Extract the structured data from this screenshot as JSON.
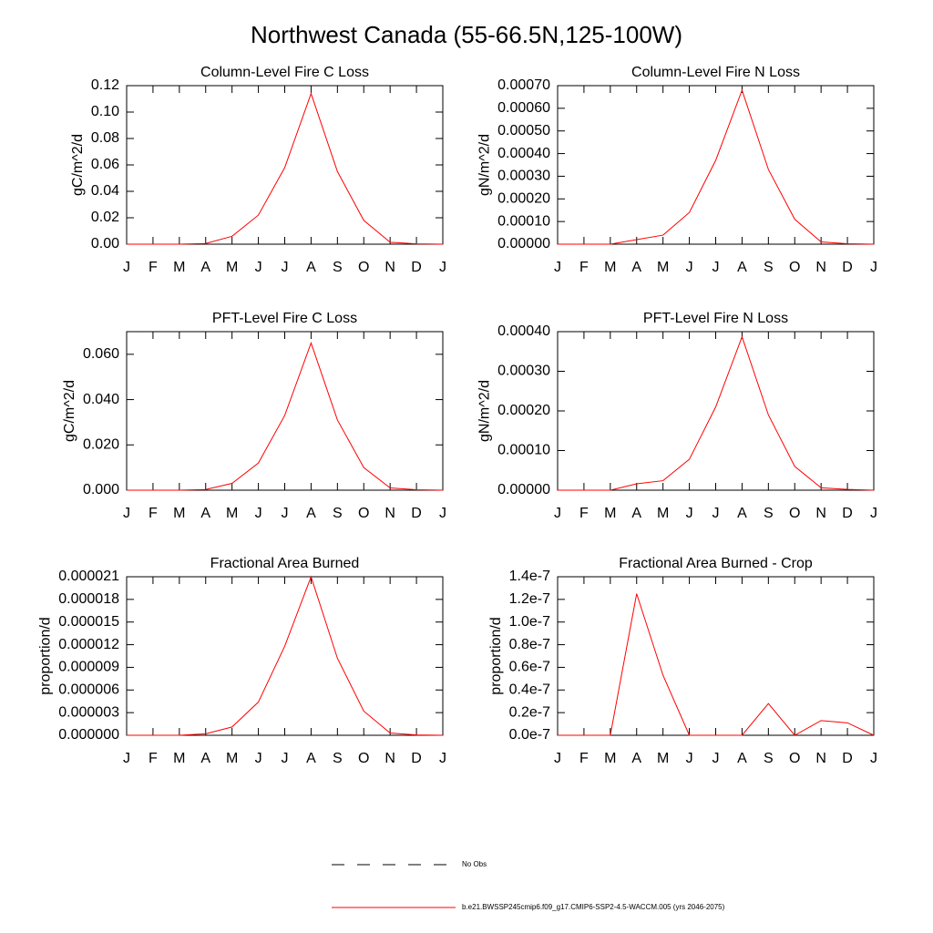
{
  "title": "Northwest Canada (55-66.5N,125-100W)",
  "legend": [
    {
      "name": "No Obs",
      "color": "#000000",
      "dashed": true
    },
    {
      "name": "b.e21.BWSSP245cmip6.f09_g17.CMIP6-SSP2-4.5-WACCM.005 (yrs 2046-2075)",
      "color": "#ff0000",
      "dashed": false
    }
  ],
  "chart_data": [
    {
      "type": "line",
      "title": "Column-Level Fire C Loss",
      "y_label": "gC/m^2/d",
      "categories": [
        "J",
        "F",
        "M",
        "A",
        "M",
        "J",
        "J",
        "A",
        "S",
        "O",
        "N",
        "D",
        "J"
      ],
      "values": [
        0,
        0,
        0,
        0.0005,
        0.006,
        0.022,
        0.058,
        0.114,
        0.055,
        0.018,
        0.0015,
        0.0003,
        0
      ],
      "color": "#ff0000",
      "ylim": [
        0,
        0.12
      ],
      "yticks": [
        {
          "value": 0,
          "label": "0.00"
        },
        0.02,
        0.04,
        0.06,
        0.08,
        {
          "value": 0.1,
          "label": "0.10"
        },
        0.12
      ]
    },
    {
      "type": "line",
      "title": "Column-Level Fire N Loss",
      "y_label": "gN/m^2/d",
      "categories": [
        "J",
        "F",
        "M",
        "A",
        "M",
        "J",
        "J",
        "A",
        "S",
        "O",
        "N",
        "D",
        "J"
      ],
      "values": [
        0,
        0,
        0,
        2e-05,
        4e-05,
        0.00014,
        0.00037,
        0.00068,
        0.00033,
        0.00011,
        1e-05,
        2e-06,
        0
      ],
      "color": "#ff0000",
      "ylim": [
        0,
        0.0007
      ],
      "yticks": [
        {
          "value": 0,
          "label": "0.00000"
        },
        {
          "value": 0.0001,
          "label": "0.00010"
        },
        {
          "value": 0.0002,
          "label": "0.00020"
        },
        {
          "value": 0.0003,
          "label": "0.00030"
        },
        {
          "value": 0.0004,
          "label": "0.00040"
        },
        {
          "value": 0.0005,
          "label": "0.00050"
        },
        {
          "value": 0.0006,
          "label": "0.00060"
        },
        {
          "value": 0.0007,
          "label": "0.00070"
        }
      ]
    },
    {
      "type": "line",
      "title": "PFT-Level Fire C Loss",
      "y_label": "gC/m^2/d",
      "categories": [
        "J",
        "F",
        "M",
        "A",
        "M",
        "J",
        "J",
        "A",
        "S",
        "O",
        "N",
        "D",
        "J"
      ],
      "values": [
        0,
        0,
        0,
        0.0003,
        0.003,
        0.012,
        0.033,
        0.065,
        0.031,
        0.01,
        0.001,
        0.0002,
        0
      ],
      "color": "#ff0000",
      "ylim": [
        0,
        0.07
      ],
      "yticks": [
        {
          "value": 0,
          "label": "0.000"
        },
        {
          "value": 0.02,
          "label": "0.020"
        },
        {
          "value": 0.04,
          "label": "0.040"
        },
        {
          "value": 0.06,
          "label": "0.060"
        }
      ]
    },
    {
      "type": "line",
      "title": "PFT-Level Fire N Loss",
      "y_label": "gN/m^2/d",
      "categories": [
        "J",
        "F",
        "M",
        "A",
        "M",
        "J",
        "J",
        "A",
        "S",
        "O",
        "N",
        "D",
        "J"
      ],
      "values": [
        0,
        0,
        0,
        1.6e-05,
        2.4e-05,
        7.8e-05,
        0.00021,
        0.000387,
        0.00019,
        6e-05,
        6e-06,
        2e-06,
        0
      ],
      "color": "#ff0000",
      "ylim": [
        0,
        0.0004
      ],
      "yticks": [
        {
          "value": 0,
          "label": "0.00000"
        },
        {
          "value": 0.0001,
          "label": "0.00010"
        },
        {
          "value": 0.0002,
          "label": "0.00020"
        },
        {
          "value": 0.0003,
          "label": "0.00030"
        },
        {
          "value": 0.0004,
          "label": "0.00040"
        }
      ]
    },
    {
      "type": "line",
      "title": "Fractional Area Burned",
      "y_label": "proportion/d",
      "categories": [
        "J",
        "F",
        "M",
        "A",
        "M",
        "J",
        "J",
        "A",
        "S",
        "O",
        "N",
        "D",
        "J"
      ],
      "values": [
        0,
        0,
        0,
        2e-07,
        1.1e-06,
        4.4e-06,
        1.18e-05,
        2.1e-05,
        1.02e-05,
        3.2e-06,
        3e-07,
        5e-08,
        0
      ],
      "color": "#ff0000",
      "ylim": [
        0,
        2.1e-05
      ],
      "yticks": [
        {
          "value": 0,
          "label": "0.000000"
        },
        {
          "value": 3e-06,
          "label": "0.000003"
        },
        {
          "value": 6e-06,
          "label": "0.000006"
        },
        {
          "value": 9e-06,
          "label": "0.000009"
        },
        {
          "value": 1.2e-05,
          "label": "0.000012"
        },
        {
          "value": 1.5e-05,
          "label": "0.000015"
        },
        {
          "value": 1.8e-05,
          "label": "0.000018"
        },
        {
          "value": 2.1e-05,
          "label": "0.000021"
        }
      ]
    },
    {
      "type": "line",
      "title": "Fractional Area Burned - Crop",
      "y_label": "proportion/d",
      "categories": [
        "J",
        "F",
        "M",
        "A",
        "M",
        "J",
        "J",
        "A",
        "S",
        "O",
        "N",
        "D",
        "J"
      ],
      "values": [
        0,
        0,
        0,
        1.25e-07,
        5.3e-08,
        0,
        0,
        0,
        2.8e-08,
        0,
        1.3e-08,
        1.1e-08,
        0
      ],
      "color": "#ff0000",
      "ylim": [
        0,
        1.4e-07
      ],
      "yticks": [
        {
          "value": 0,
          "label": "0.0e-7"
        },
        {
          "value": 2e-08,
          "label": "0.2e-7"
        },
        {
          "value": 4e-08,
          "label": "0.4e-7"
        },
        {
          "value": 6e-08,
          "label": "0.6e-7"
        },
        {
          "value": 8e-08,
          "label": "0.8e-7"
        },
        {
          "value": 1e-07,
          "label": "1.0e-7"
        },
        {
          "value": 1.2e-07,
          "label": "1.2e-7"
        },
        {
          "value": 1.4e-07,
          "label": "1.4e-7"
        }
      ]
    }
  ]
}
